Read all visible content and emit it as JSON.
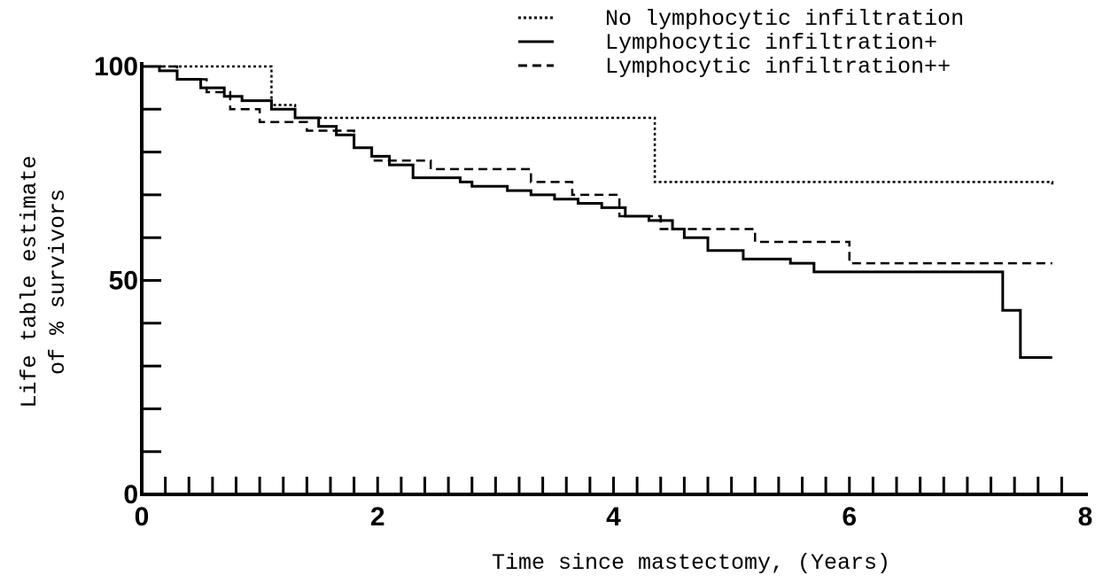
{
  "chart_data": {
    "type": "step",
    "xlabel": "Time since mastectomy, (Years)",
    "ylabel": [
      "Life table estimate",
      "of % survivors"
    ],
    "xlim": [
      0,
      8
    ],
    "ylim": [
      0,
      100
    ],
    "xticks": [
      0,
      2,
      4,
      6,
      8
    ],
    "yticks": [
      0,
      50,
      100
    ],
    "x_minor_ticks": [
      0.2,
      0.4,
      0.6,
      0.8,
      1.0,
      1.2,
      1.4,
      1.6,
      1.8,
      2.0,
      2.2,
      2.4,
      2.6,
      2.8,
      3.0,
      3.2,
      3.4,
      3.6,
      3.8,
      4.0,
      4.2,
      4.4,
      4.6,
      4.8,
      5.0,
      5.2,
      5.4,
      5.6,
      5.8,
      6.0,
      6.2,
      6.4,
      6.6,
      6.8,
      7.0,
      7.2,
      7.4,
      7.6,
      7.8
    ],
    "y_minor_ticks": [
      10,
      20,
      30,
      40,
      50,
      60,
      70,
      80,
      90,
      100
    ],
    "legend": "top-right",
    "series": [
      {
        "name": "No lymphocytic infiltration",
        "color": "#000",
        "dash": "3,3",
        "x": [
          0,
          1.1,
          1.3,
          4.35,
          7.72
        ],
        "values": [
          100,
          91,
          88,
          73,
          72
        ]
      },
      {
        "name": "Lymphocytic infiltration+",
        "color": "#000",
        "dash": "none",
        "x": [
          0,
          0.15,
          0.3,
          0.5,
          0.7,
          0.85,
          1.1,
          1.3,
          1.5,
          1.65,
          1.8,
          1.95,
          2.1,
          2.3,
          2.7,
          2.8,
          3.1,
          3.3,
          3.5,
          3.7,
          3.9,
          4.1,
          4.3,
          4.5,
          4.6,
          4.8,
          5.1,
          5.5,
          5.7,
          7.3,
          7.45,
          7.72
        ],
        "values": [
          100,
          99,
          97,
          95,
          93,
          92,
          90,
          88,
          86,
          84,
          81,
          79,
          77,
          74,
          73,
          72,
          71,
          70,
          69,
          68,
          67,
          65,
          64,
          62,
          60,
          57,
          55,
          54,
          52,
          43,
          32,
          32
        ]
      },
      {
        "name": "Lymphocytic infiltration++",
        "color": "#000",
        "dash": "10,6",
        "x": [
          0,
          0.3,
          0.55,
          0.75,
          1.0,
          1.4,
          1.8,
          1.95,
          2.45,
          3.3,
          3.65,
          4.05,
          4.4,
          5.2,
          6.0,
          7.72
        ],
        "values": [
          100,
          97,
          94,
          90,
          87,
          85,
          81,
          78,
          76,
          73,
          70,
          65,
          62,
          59,
          54,
          54
        ]
      }
    ]
  }
}
